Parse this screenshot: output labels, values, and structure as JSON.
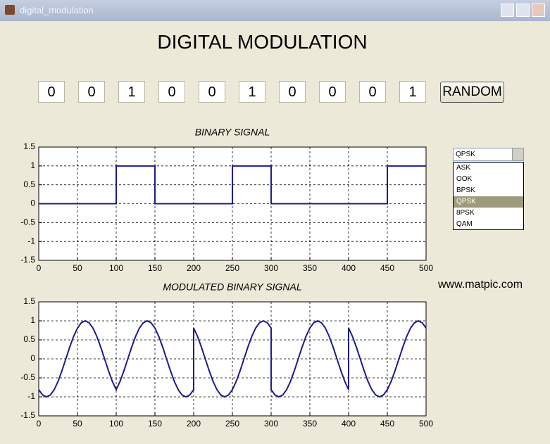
{
  "window": {
    "title": "digital_modulation"
  },
  "heading": "DIGITAL MODULATION",
  "bits": [
    0,
    0,
    1,
    0,
    0,
    1,
    0,
    0,
    0,
    1
  ],
  "random_button": "RANDOM",
  "dropdown": {
    "selected": "QPSK",
    "options": [
      "ASK",
      "OOK",
      "BPSK",
      "QPSK",
      "8PSK",
      "QAM"
    ]
  },
  "watermark": "www.matpic.com",
  "chart_data": [
    {
      "type": "line",
      "title": "BINARY SIGNAL",
      "color": "#1c1c8f",
      "grid": true,
      "x": [
        0,
        100,
        100,
        150,
        150,
        250,
        250,
        300,
        300,
        450,
        450,
        500
      ],
      "values": [
        0,
        0,
        1,
        1,
        0,
        0,
        1,
        1,
        0,
        0,
        1,
        1
      ],
      "xlim": [
        0,
        500
      ],
      "ylim": [
        -1.5,
        1.5
      ],
      "xticks": [
        0,
        50,
        100,
        150,
        200,
        250,
        300,
        350,
        400,
        450,
        500
      ],
      "yticks": [
        -1.5,
        -1,
        -0.5,
        0,
        0.5,
        1,
        1.5
      ]
    },
    {
      "type": "line",
      "title": "MODULATED BINARY SIGNAL",
      "color": "#1c1c8f",
      "grid": true,
      "x": [
        0,
        5,
        10,
        15,
        20,
        25,
        30,
        35,
        40,
        45,
        50,
        55,
        60,
        65,
        70,
        75,
        80,
        85,
        90,
        95,
        100,
        105,
        110,
        115,
        120,
        125,
        130,
        135,
        140,
        145,
        150,
        155,
        160,
        165,
        170,
        175,
        180,
        185,
        190,
        195,
        200,
        200,
        205,
        210,
        215,
        220,
        225,
        230,
        235,
        240,
        245,
        250,
        255,
        260,
        265,
        270,
        275,
        280,
        285,
        290,
        295,
        300,
        300,
        305,
        310,
        315,
        320,
        325,
        330,
        335,
        340,
        345,
        350,
        355,
        360,
        365,
        370,
        375,
        380,
        385,
        390,
        395,
        400,
        400,
        405,
        410,
        415,
        420,
        425,
        430,
        435,
        440,
        445,
        450,
        455,
        460,
        465,
        470,
        475,
        480,
        485,
        490,
        495,
        500
      ],
      "values": [
        -0.81,
        -0.95,
        -1,
        -0.95,
        -0.81,
        -0.59,
        -0.31,
        0,
        0.31,
        0.59,
        0.81,
        0.95,
        1,
        0.95,
        0.81,
        0.59,
        0.31,
        0,
        -0.31,
        -0.59,
        -0.81,
        -0.59,
        -0.31,
        0,
        0.31,
        0.59,
        0.81,
        0.95,
        1,
        0.95,
        0.81,
        0.59,
        0.31,
        0,
        -0.31,
        -0.59,
        -0.81,
        -0.95,
        -1,
        -0.95,
        -0.81,
        0.81,
        0.59,
        0.31,
        0,
        -0.31,
        -0.59,
        -0.81,
        -0.95,
        -1,
        -0.95,
        -0.81,
        -0.59,
        -0.31,
        0,
        0.31,
        0.59,
        0.81,
        0.95,
        1,
        0.95,
        0.81,
        -0.81,
        -0.95,
        -1,
        -0.95,
        -0.81,
        -0.59,
        -0.31,
        0,
        0.31,
        0.59,
        0.81,
        0.95,
        1,
        0.95,
        0.81,
        0.59,
        0.31,
        0,
        -0.31,
        -0.59,
        -0.81,
        0.81,
        0.59,
        0.31,
        0,
        -0.31,
        -0.59,
        -0.81,
        -0.95,
        -1,
        -0.95,
        -0.81,
        -0.59,
        -0.31,
        0,
        0.31,
        0.59,
        0.81,
        0.95,
        1,
        0.95,
        0.81
      ],
      "xlim": [
        0,
        500
      ],
      "ylim": [
        -1.5,
        1.5
      ],
      "xticks": [
        0,
        50,
        100,
        150,
        200,
        250,
        300,
        350,
        400,
        450,
        500
      ],
      "yticks": [
        -1.5,
        -1,
        -0.5,
        0,
        0.5,
        1,
        1.5
      ]
    }
  ]
}
